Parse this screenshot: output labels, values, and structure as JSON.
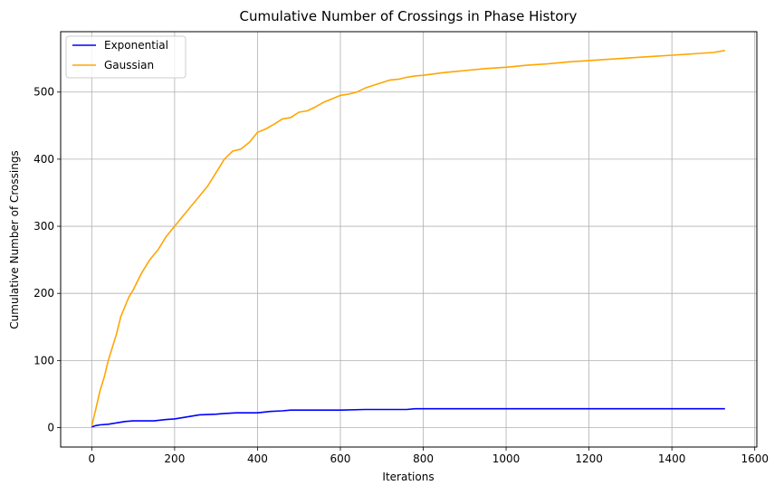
{
  "chart_data": {
    "type": "line",
    "title": "Cumulative Number of Crossings in Phase History",
    "xlabel": "Iterations",
    "ylabel": "Cumulative Number of Crossings",
    "xlim": [
      -75,
      1605
    ],
    "ylim": [
      -29,
      590
    ],
    "xticks": [
      0,
      200,
      400,
      600,
      800,
      1000,
      1200,
      1400,
      1600
    ],
    "yticks": [
      0,
      100,
      200,
      300,
      400,
      500
    ],
    "grid": true,
    "legend_position": "top-left",
    "series": [
      {
        "name": "Exponential",
        "color": "#0000ff",
        "x": [
          0,
          10,
          20,
          40,
          60,
          80,
          100,
          150,
          180,
          200,
          220,
          240,
          260,
          300,
          320,
          350,
          400,
          430,
          460,
          480,
          500,
          600,
          660,
          680,
          760,
          780,
          800,
          1000,
          1200,
          1400,
          1528
        ],
        "y": [
          1,
          3,
          4,
          5,
          7,
          9,
          10,
          10,
          12,
          13,
          15,
          17,
          19,
          20,
          21,
          22,
          22,
          24,
          25,
          26,
          26,
          26,
          27,
          27,
          27,
          28,
          28,
          28,
          28,
          28,
          28
        ]
      },
      {
        "name": "Gaussian",
        "color": "#ffa500",
        "x": [
          0,
          10,
          20,
          30,
          40,
          50,
          60,
          70,
          80,
          90,
          100,
          120,
          140,
          160,
          180,
          200,
          220,
          240,
          260,
          280,
          300,
          320,
          340,
          360,
          380,
          400,
          420,
          440,
          460,
          480,
          500,
          520,
          540,
          560,
          580,
          600,
          620,
          640,
          660,
          680,
          700,
          720,
          740,
          760,
          780,
          800,
          850,
          900,
          950,
          1000,
          1050,
          1100,
          1150,
          1200,
          1250,
          1300,
          1350,
          1400,
          1450,
          1500,
          1528
        ],
        "y": [
          2,
          28,
          55,
          75,
          100,
          120,
          140,
          165,
          180,
          195,
          205,
          230,
          250,
          265,
          285,
          300,
          315,
          330,
          345,
          360,
          380,
          400,
          412,
          415,
          425,
          440,
          445,
          452,
          460,
          462,
          470,
          472,
          478,
          485,
          490,
          495,
          497,
          500,
          506,
          510,
          514,
          518,
          519,
          522,
          524,
          525,
          529,
          532,
          535,
          537,
          540,
          542,
          545,
          547,
          549,
          551,
          553,
          555,
          557,
          559,
          562
        ]
      }
    ]
  }
}
